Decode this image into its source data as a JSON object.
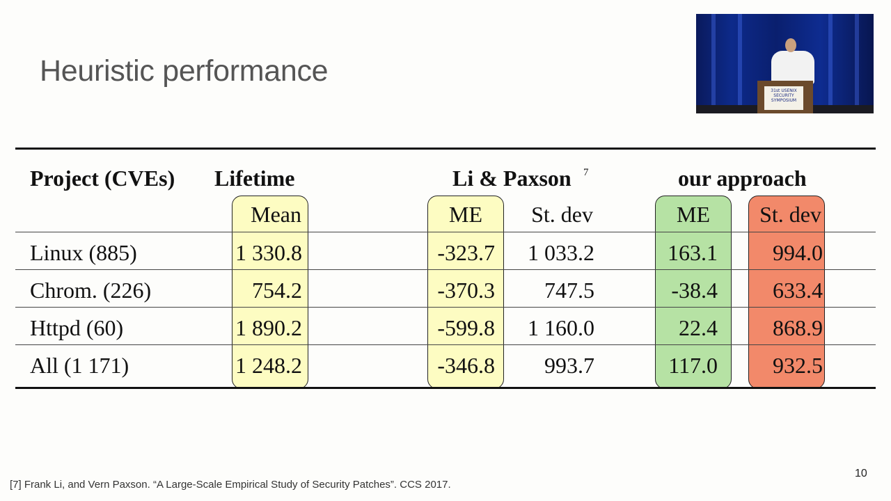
{
  "slide": {
    "title": "Heuristic performance",
    "footnote": "[7] Frank Li, and Vern Paxson. “A Large-Scale Empirical Study of Security Patches”. CCS 2017.",
    "page_number": "10"
  },
  "video": {
    "podium_sign": "31st USENIX SECURITY SYMPOSIUM"
  },
  "table": {
    "group_headers": {
      "project": "Project (CVEs)",
      "lifetime": "Lifetime",
      "li_paxson": "Li & Paxson",
      "li_paxson_ref": "7",
      "ours": "our approach"
    },
    "sub_headers": {
      "lifetime_mean": "Mean",
      "lp_me": "ME",
      "lp_sd": "St. dev",
      "our_me": "ME",
      "our_sd": "St. dev"
    },
    "rows": [
      {
        "project": "Linux (885)",
        "mean": "1 330.8",
        "lp_me": "-323.7",
        "lp_sd": "1 033.2",
        "our_me": "163.1",
        "our_sd": "994.0"
      },
      {
        "project": "Chrom. (226)",
        "mean": "754.2",
        "lp_me": "-370.3",
        "lp_sd": "747.5",
        "our_me": "-38.4",
        "our_sd": "633.4"
      },
      {
        "project": "Httpd (60)",
        "mean": "1 890.2",
        "lp_me": "-599.8",
        "lp_sd": "1 160.0",
        "our_me": "22.4",
        "our_sd": "868.9"
      },
      {
        "project": "All (1 171)",
        "mean": "1 248.2",
        "lp_me": "-346.8",
        "lp_sd": "993.7",
        "our_me": "117.0",
        "our_sd": "932.5"
      }
    ],
    "highlight_colors": {
      "yellow": "#fdfcc2",
      "green": "#b6e2a4",
      "red": "#f2896a"
    }
  }
}
